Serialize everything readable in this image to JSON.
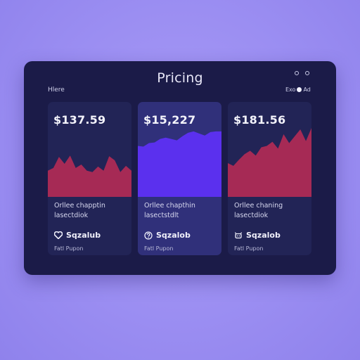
{
  "panel": {
    "title": "Pricing",
    "top_left_label": "Hlere",
    "top_right_label": "Exo",
    "top_right_suffix": "Ad"
  },
  "colors": {
    "background": "#9b8ef2",
    "panel": "#1b1b48",
    "card": "#222456",
    "card_highlight": "#30307a",
    "chart_crimson": "#a62a55",
    "chart_violet": "#5b30ee"
  },
  "cards": [
    {
      "price": "$137.59",
      "desc_line1": "Orllee chapptin",
      "desc_line2": "lasectdiok",
      "feature_icon": "heart-icon",
      "feature_label": "Sqzalub",
      "footnote": "Fatl Pupon",
      "chart_color": "#a62a55",
      "chart_values": [
        0.38,
        0.42,
        0.58,
        0.48,
        0.6,
        0.42,
        0.47,
        0.38,
        0.36,
        0.44,
        0.38,
        0.59,
        0.53,
        0.36,
        0.45,
        0.38
      ]
    },
    {
      "price": "$15,227",
      "desc_line1": "Orllee chapthin",
      "desc_line2": "lasectstdlt",
      "feature_icon": "circle-question-icon",
      "feature_label": "Sqzalob",
      "footnote": "Fatl Pupon",
      "chart_color": "#5b30ee",
      "chart_values": [
        0.74,
        0.73,
        0.78,
        0.79,
        0.84,
        0.86,
        0.84,
        0.82,
        0.88,
        0.93,
        0.95,
        0.92,
        0.89,
        0.94,
        0.95,
        0.95
      ]
    },
    {
      "price": "$181.56",
      "desc_line1": "Orllee chaning",
      "desc_line2": "lasectdiok",
      "feature_icon": "crab-icon",
      "feature_label": "Sqzalob",
      "footnote": "Fatl Pupon",
      "chart_color": "#a62a55",
      "chart_values": [
        0.49,
        0.45,
        0.54,
        0.62,
        0.67,
        0.6,
        0.72,
        0.74,
        0.8,
        0.7,
        0.91,
        0.78,
        0.88,
        0.98,
        0.81,
        1.0
      ]
    }
  ]
}
